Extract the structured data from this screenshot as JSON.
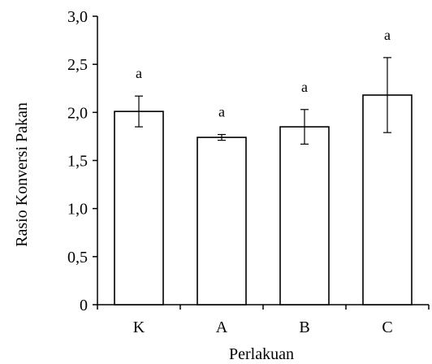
{
  "chart_data": {
    "type": "bar",
    "categories": [
      "K",
      "A",
      "B",
      "C"
    ],
    "values": [
      2.01,
      1.74,
      1.85,
      2.18
    ],
    "error": [
      0.16,
      0.03,
      0.18,
      0.39
    ],
    "significance": [
      "a",
      "a",
      "a",
      "a"
    ],
    "xlabel": "Perlakuan",
    "ylabel": "Rasio Konversi Pakan",
    "ylim": [
      0,
      3.0
    ],
    "yticks": [
      "0",
      "0,5",
      "1,0",
      "1,5",
      "2,0",
      "2,5",
      "3,0"
    ],
    "grid": false,
    "bar_fill": "#ffffff",
    "bar_stroke": "#000000"
  }
}
